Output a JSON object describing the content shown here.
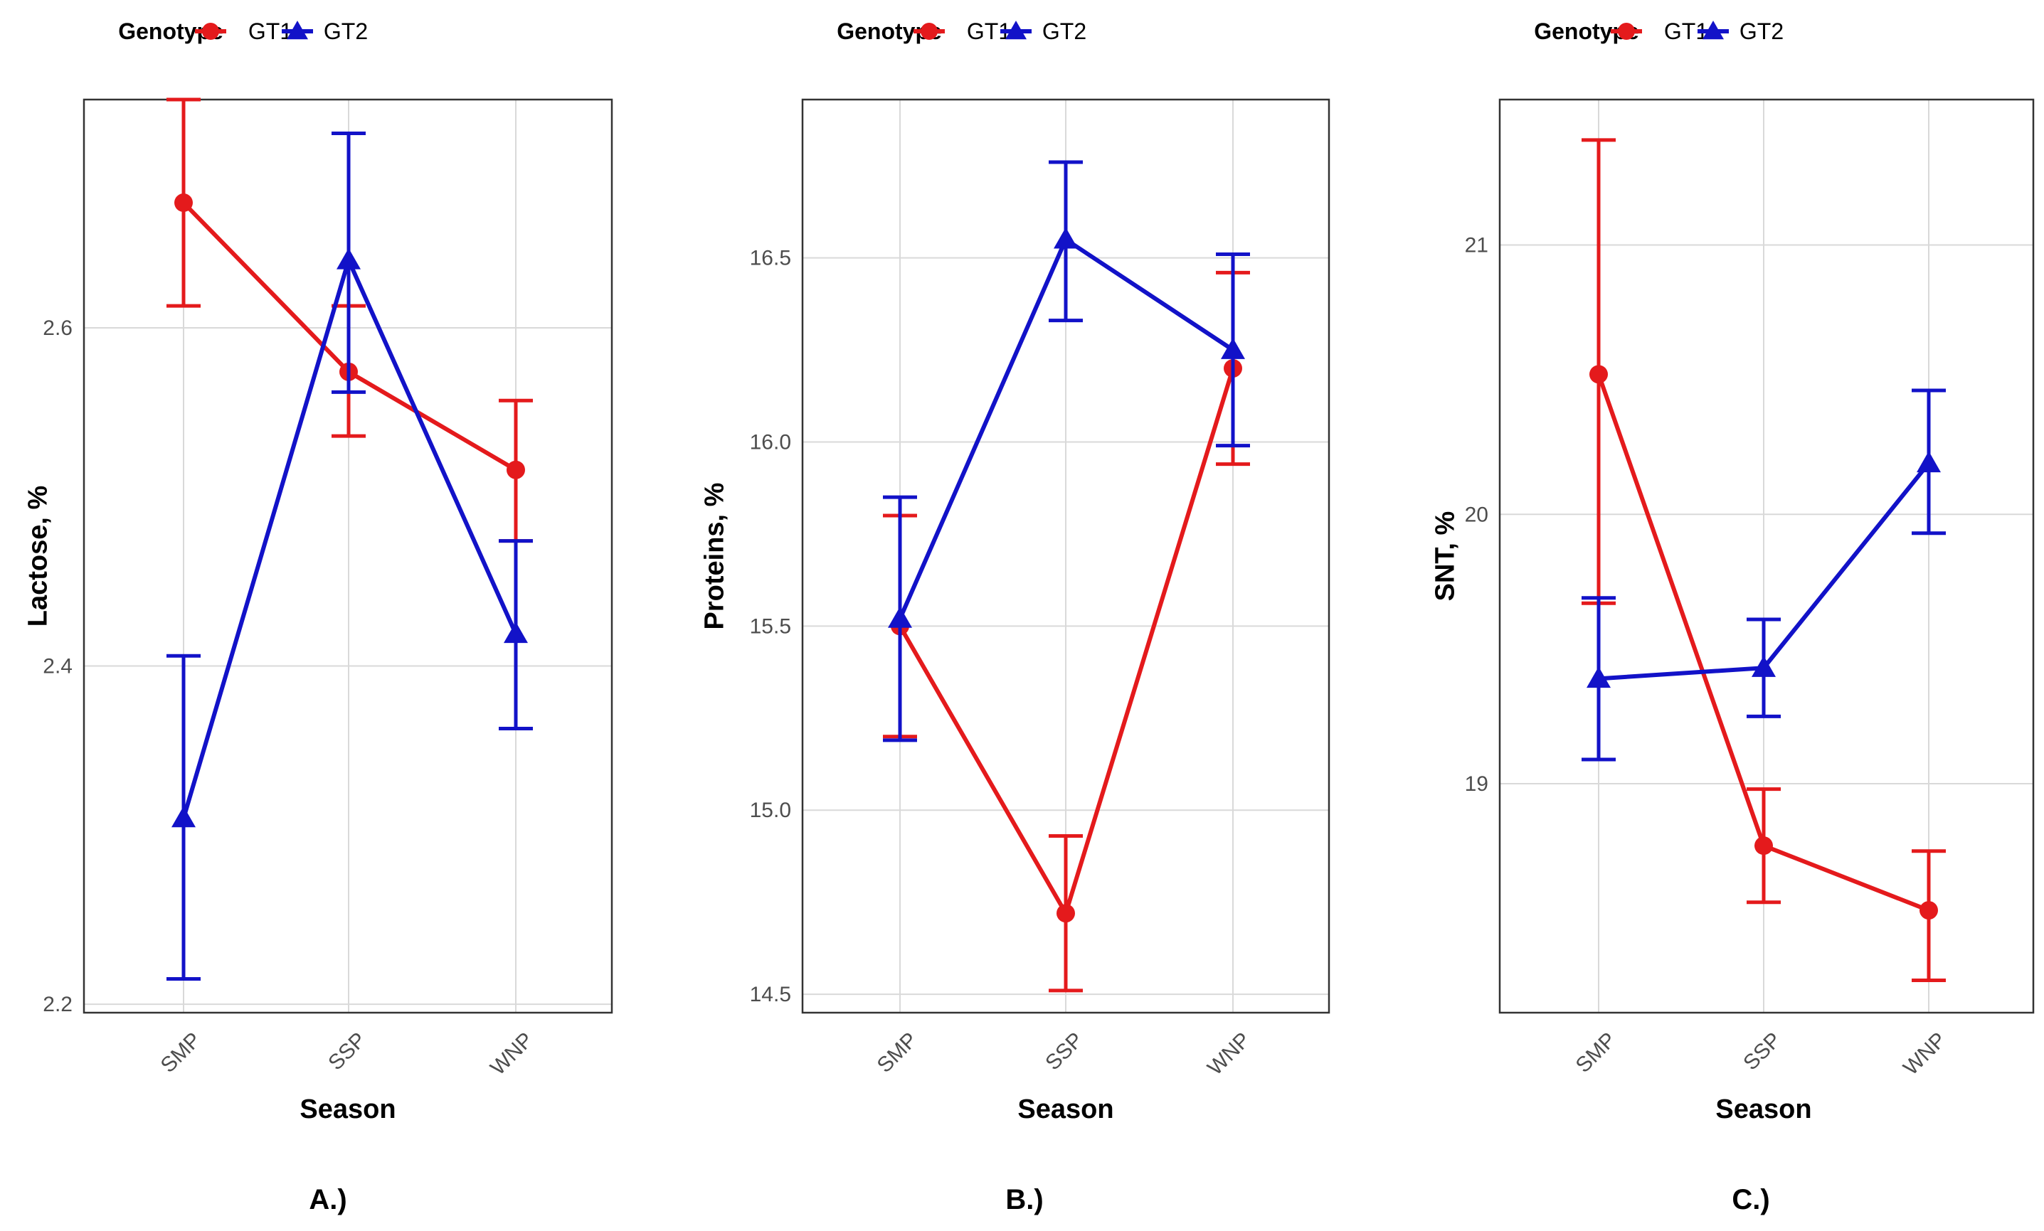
{
  "chart_data": [
    {
      "type": "line",
      "panel_label": "A.)",
      "legend_title": "Genotype",
      "legend_position": "top",
      "xlabel": "Season",
      "ylabel": "Lactose, %",
      "categories": [
        "SMP",
        "SSP",
        "WNP"
      ],
      "ylim": [
        2.195,
        2.735
      ],
      "yticks": [
        2.2,
        2.4,
        2.6
      ],
      "ytick_labels": [
        "2.2",
        "2.4",
        "2.6"
      ],
      "grid": true,
      "series": [
        {
          "name": "GT1",
          "color": "#e41a1c",
          "marker": "circle",
          "values": [
            2.674,
            2.574,
            2.516
          ],
          "lower": [
            2.613,
            2.536,
            2.474
          ],
          "upper": [
            2.735,
            2.613,
            2.557
          ]
        },
        {
          "name": "GT2",
          "color": "#1212c8",
          "marker": "triangle",
          "values": [
            2.31,
            2.64,
            2.419
          ],
          "lower": [
            2.215,
            2.562,
            2.363
          ],
          "upper": [
            2.406,
            2.715,
            2.474
          ]
        }
      ]
    },
    {
      "type": "line",
      "panel_label": "B.)",
      "legend_title": "Genotype",
      "legend_position": "top",
      "xlabel": "Season",
      "ylabel": "Proteins, %",
      "categories": [
        "SMP",
        "SSP",
        "WNP"
      ],
      "ylim": [
        14.45,
        16.93
      ],
      "yticks": [
        14.5,
        15.0,
        15.5,
        16.0,
        16.5
      ],
      "ytick_labels": [
        "14.5",
        "15.0",
        "15.5",
        "16.0",
        "16.5"
      ],
      "grid": true,
      "series": [
        {
          "name": "GT1",
          "color": "#e41a1c",
          "marker": "circle",
          "values": [
            15.5,
            14.72,
            16.2
          ],
          "lower": [
            15.2,
            14.51,
            15.94
          ],
          "upper": [
            15.8,
            14.93,
            16.46
          ]
        },
        {
          "name": "GT2",
          "color": "#1212c8",
          "marker": "triangle",
          "values": [
            15.52,
            16.55,
            16.25
          ],
          "lower": [
            15.19,
            16.33,
            15.99
          ],
          "upper": [
            15.85,
            16.76,
            16.51
          ]
        }
      ]
    },
    {
      "type": "line",
      "panel_label": "C.)",
      "legend_title": "Genotype",
      "legend_position": "top",
      "xlabel": "Season",
      "ylabel": "SNT, %",
      "categories": [
        "SMP",
        "SSP",
        "WNP"
      ],
      "ylim": [
        18.15,
        21.54
      ],
      "yticks": [
        19,
        20,
        21
      ],
      "ytick_labels": [
        "19",
        "20",
        "21"
      ],
      "grid": true,
      "series": [
        {
          "name": "GT1",
          "color": "#e41a1c",
          "marker": "circle",
          "values": [
            20.52,
            18.77,
            18.53
          ],
          "lower": [
            19.67,
            18.56,
            18.27
          ],
          "upper": [
            21.39,
            18.98,
            18.75
          ]
        },
        {
          "name": "GT2",
          "color": "#1212c8",
          "marker": "triangle",
          "values": [
            19.39,
            19.43,
            20.19
          ],
          "lower": [
            19.09,
            19.25,
            19.93
          ],
          "upper": [
            19.69,
            19.61,
            20.46
          ]
        }
      ]
    }
  ]
}
